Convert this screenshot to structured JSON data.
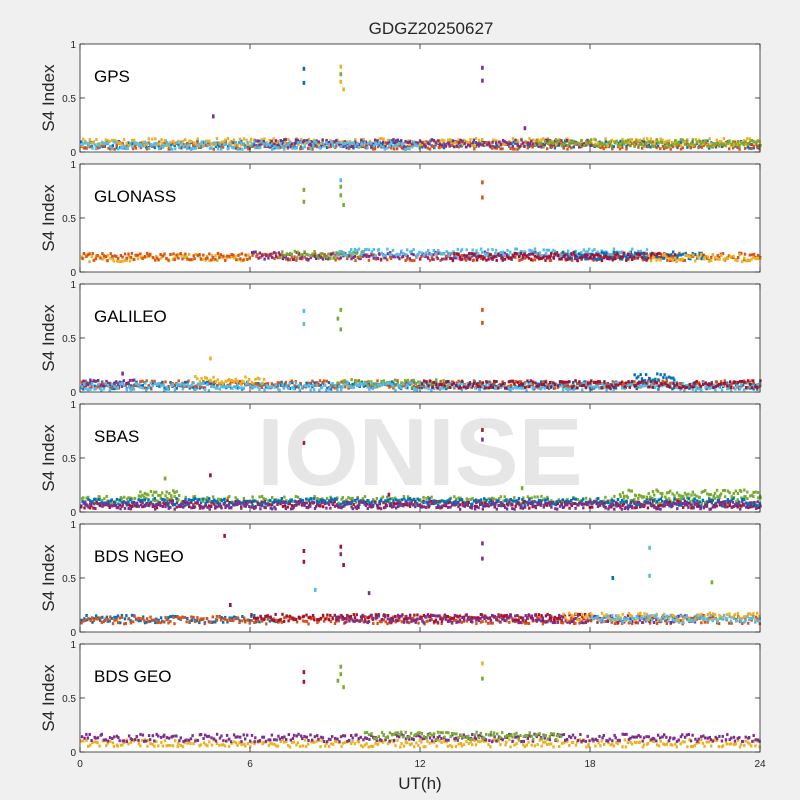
{
  "chart_data": {
    "type": "scatter",
    "title": "GDGZ20250627",
    "xlabel": "UT(h)",
    "ylabel": "S4 Index",
    "xlim": [
      0,
      24
    ],
    "ylim": [
      0,
      1
    ],
    "x_ticks": [
      "0",
      "6",
      "12",
      "18",
      "24"
    ],
    "y_ticks": [
      "0",
      "0.5",
      "1"
    ],
    "watermark": "IONISE",
    "series_colors": [
      "#0072BD",
      "#D95319",
      "#EDB120",
      "#7E2F8E",
      "#77AC30",
      "#4DBEEE",
      "#A2142F"
    ],
    "panels": [
      {
        "name": "GPS",
        "baseline": [
          {
            "color_index": 0,
            "level": 0.07,
            "from": 0,
            "to": 24
          },
          {
            "color_index": 1,
            "level": 0.06,
            "from": 0,
            "to": 24
          },
          {
            "color_index": 2,
            "level": 0.09,
            "from": 0,
            "to": 24
          },
          {
            "color_index": 3,
            "level": 0.08,
            "from": 6,
            "to": 18
          },
          {
            "color_index": 4,
            "level": 0.08,
            "from": 16,
            "to": 24
          },
          {
            "color_index": 5,
            "level": 0.06,
            "from": 0,
            "to": 12
          }
        ],
        "spikes": [
          {
            "x": 7.9,
            "y": 0.77,
            "color_index": 0
          },
          {
            "x": 7.9,
            "y": 0.64,
            "color_index": 0
          },
          {
            "x": 9.2,
            "y": 0.79,
            "color_index": 2
          },
          {
            "x": 9.2,
            "y": 0.72,
            "color_index": 4
          },
          {
            "x": 9.2,
            "y": 0.65,
            "color_index": 2
          },
          {
            "x": 9.3,
            "y": 0.58,
            "color_index": 2
          },
          {
            "x": 14.2,
            "y": 0.78,
            "color_index": 3
          },
          {
            "x": 14.2,
            "y": 0.66,
            "color_index": 3
          },
          {
            "x": 4.7,
            "y": 0.33,
            "color_index": 3
          },
          {
            "x": 15.7,
            "y": 0.22,
            "color_index": 3
          }
        ]
      },
      {
        "name": "GLONASS",
        "baseline": [
          {
            "color_index": 2,
            "level": 0.13,
            "from": 0,
            "to": 6
          },
          {
            "color_index": 1,
            "level": 0.14,
            "from": 0,
            "to": 24
          },
          {
            "color_index": 3,
            "level": 0.15,
            "from": 6,
            "to": 20
          },
          {
            "color_index": 4,
            "level": 0.16,
            "from": 7,
            "to": 10
          },
          {
            "color_index": 5,
            "level": 0.18,
            "from": 9,
            "to": 20
          },
          {
            "color_index": 0,
            "level": 0.15,
            "from": 17,
            "to": 22
          },
          {
            "color_index": 6,
            "level": 0.14,
            "from": 13,
            "to": 21
          },
          {
            "color_index": 2,
            "level": 0.13,
            "from": 20,
            "to": 24
          }
        ],
        "spikes": [
          {
            "x": 7.9,
            "y": 0.76,
            "color_index": 4
          },
          {
            "x": 7.9,
            "y": 0.65,
            "color_index": 4
          },
          {
            "x": 9.2,
            "y": 0.85,
            "color_index": 5
          },
          {
            "x": 9.2,
            "y": 0.79,
            "color_index": 4
          },
          {
            "x": 9.2,
            "y": 0.71,
            "color_index": 4
          },
          {
            "x": 9.3,
            "y": 0.62,
            "color_index": 4
          },
          {
            "x": 14.2,
            "y": 0.83,
            "color_index": 1
          },
          {
            "x": 14.2,
            "y": 0.69,
            "color_index": 1
          }
        ]
      },
      {
        "name": "GALILEO",
        "baseline": [
          {
            "color_index": 0,
            "level": 0.06,
            "from": 0,
            "to": 24
          },
          {
            "color_index": 1,
            "level": 0.07,
            "from": 0,
            "to": 24
          },
          {
            "color_index": 2,
            "level": 0.11,
            "from": 4,
            "to": 6.5
          },
          {
            "color_index": 3,
            "level": 0.08,
            "from": 0,
            "to": 2
          },
          {
            "color_index": 4,
            "level": 0.08,
            "from": 9,
            "to": 13
          },
          {
            "color_index": 5,
            "level": 0.05,
            "from": 0,
            "to": 24
          },
          {
            "color_index": 6,
            "level": 0.07,
            "from": 12,
            "to": 24
          },
          {
            "color_index": 0,
            "level": 0.14,
            "from": 19.5,
            "to": 21
          }
        ],
        "spikes": [
          {
            "x": 7.9,
            "y": 0.75,
            "color_index": 5
          },
          {
            "x": 7.9,
            "y": 0.63,
            "color_index": 5
          },
          {
            "x": 9.2,
            "y": 0.76,
            "color_index": 4
          },
          {
            "x": 9.1,
            "y": 0.68,
            "color_index": 4
          },
          {
            "x": 9.2,
            "y": 0.58,
            "color_index": 4
          },
          {
            "x": 14.2,
            "y": 0.76,
            "color_index": 1
          },
          {
            "x": 14.2,
            "y": 0.64,
            "color_index": 1
          },
          {
            "x": 4.6,
            "y": 0.31,
            "color_index": 2
          },
          {
            "x": 1.5,
            "y": 0.17,
            "color_index": 3
          }
        ]
      },
      {
        "name": "SBAS",
        "baseline": [
          {
            "color_index": 4,
            "level": 0.11,
            "from": 0,
            "to": 24
          },
          {
            "color_index": 6,
            "level": 0.07,
            "from": 0,
            "to": 24
          },
          {
            "color_index": 0,
            "level": 0.09,
            "from": 0,
            "to": 24
          },
          {
            "color_index": 3,
            "level": 0.06,
            "from": 0,
            "to": 24
          },
          {
            "color_index": 4,
            "level": 0.18,
            "from": 2,
            "to": 3.5
          },
          {
            "color_index": 4,
            "level": 0.17,
            "from": 19,
            "to": 24
          }
        ],
        "spikes": [
          {
            "x": 7.9,
            "y": 0.64,
            "color_index": 6
          },
          {
            "x": 14.2,
            "y": 0.76,
            "color_index": 6
          },
          {
            "x": 14.2,
            "y": 0.67,
            "color_index": 3
          },
          {
            "x": 4.6,
            "y": 0.34,
            "color_index": 6
          },
          {
            "x": 3.0,
            "y": 0.31,
            "color_index": 4
          },
          {
            "x": 15.6,
            "y": 0.22,
            "color_index": 4
          },
          {
            "x": 10.9,
            "y": 0.16,
            "color_index": 6
          }
        ]
      },
      {
        "name": "BDS NGEO",
        "baseline": [
          {
            "color_index": 0,
            "level": 0.12,
            "from": 0,
            "to": 7
          },
          {
            "color_index": 1,
            "level": 0.11,
            "from": 0,
            "to": 24
          },
          {
            "color_index": 6,
            "level": 0.13,
            "from": 6,
            "to": 18
          },
          {
            "color_index": 3,
            "level": 0.12,
            "from": 9,
            "to": 22
          },
          {
            "color_index": 2,
            "level": 0.14,
            "from": 17,
            "to": 24
          },
          {
            "color_index": 5,
            "level": 0.12,
            "from": 18,
            "to": 24
          }
        ],
        "spikes": [
          {
            "x": 5.1,
            "y": 0.89,
            "color_index": 6
          },
          {
            "x": 7.9,
            "y": 0.75,
            "color_index": 6
          },
          {
            "x": 7.9,
            "y": 0.65,
            "color_index": 6
          },
          {
            "x": 9.2,
            "y": 0.79,
            "color_index": 6
          },
          {
            "x": 9.2,
            "y": 0.72,
            "color_index": 3
          },
          {
            "x": 9.3,
            "y": 0.62,
            "color_index": 6
          },
          {
            "x": 14.2,
            "y": 0.82,
            "color_index": 3
          },
          {
            "x": 14.2,
            "y": 0.68,
            "color_index": 3
          },
          {
            "x": 20.1,
            "y": 0.78,
            "color_index": 5
          },
          {
            "x": 20.1,
            "y": 0.52,
            "color_index": 5
          },
          {
            "x": 18.8,
            "y": 0.5,
            "color_index": 0
          },
          {
            "x": 22.3,
            "y": 0.46,
            "color_index": 4
          },
          {
            "x": 8.3,
            "y": 0.39,
            "color_index": 5
          },
          {
            "x": 10.2,
            "y": 0.36,
            "color_index": 3
          },
          {
            "x": 5.3,
            "y": 0.25,
            "color_index": 6
          }
        ]
      },
      {
        "name": "BDS GEO",
        "baseline": [
          {
            "color_index": 2,
            "level": 0.08,
            "from": 0,
            "to": 24
          },
          {
            "color_index": 3,
            "level": 0.13,
            "from": 0,
            "to": 24
          },
          {
            "color_index": 4,
            "level": 0.15,
            "from": 10,
            "to": 17
          }
        ],
        "spikes": [
          {
            "x": 7.9,
            "y": 0.74,
            "color_index": 6
          },
          {
            "x": 7.9,
            "y": 0.65,
            "color_index": 6
          },
          {
            "x": 9.2,
            "y": 0.79,
            "color_index": 4
          },
          {
            "x": 9.2,
            "y": 0.72,
            "color_index": 4
          },
          {
            "x": 9.1,
            "y": 0.66,
            "color_index": 4
          },
          {
            "x": 9.3,
            "y": 0.6,
            "color_index": 4
          },
          {
            "x": 14.2,
            "y": 0.82,
            "color_index": 2
          },
          {
            "x": 14.2,
            "y": 0.68,
            "color_index": 4
          }
        ]
      }
    ]
  }
}
